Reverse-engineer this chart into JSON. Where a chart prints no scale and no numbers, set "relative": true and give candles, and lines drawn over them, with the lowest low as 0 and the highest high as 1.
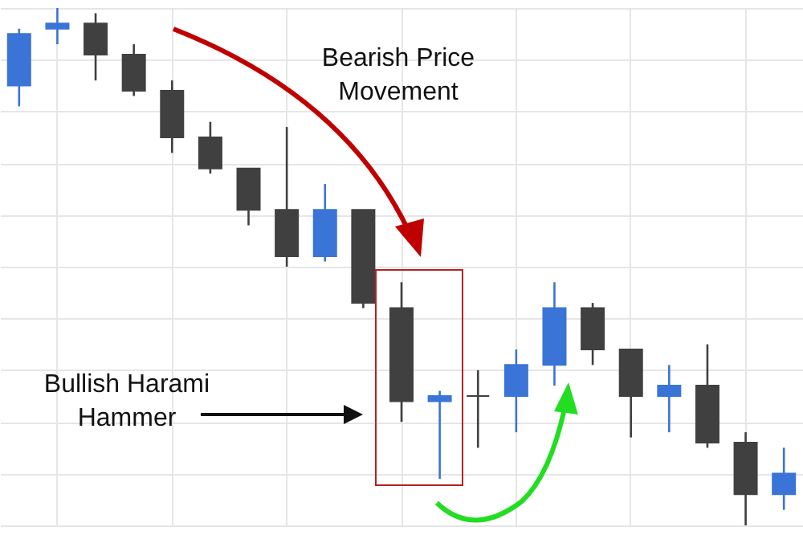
{
  "chart_data": {
    "type": "candlestick",
    "relative": true,
    "grid": true,
    "categories": [
      null,
      null,
      null,
      null,
      null,
      null,
      null,
      null,
      null,
      null,
      null,
      null,
      null,
      null,
      null,
      null,
      null,
      null,
      null,
      null,
      null
    ],
    "ohlc": [
      [
        0.85,
        0.96,
        0.81,
        0.95
      ],
      [
        0.96,
        1,
        0.93,
        0.97
      ],
      [
        0.97,
        0.99,
        0.86,
        0.91
      ],
      [
        0.91,
        0.93,
        0.83,
        0.84
      ],
      [
        0.84,
        0.86,
        0.72,
        0.75
      ],
      [
        0.75,
        0.78,
        0.68,
        0.69
      ],
      [
        0.69,
        0.69,
        0.58,
        0.61
      ],
      [
        0.61,
        0.77,
        0.5,
        0.52
      ],
      [
        0.52,
        0.66,
        0.51,
        0.61
      ],
      [
        0.61,
        0.61,
        0.42,
        0.43
      ],
      [
        0.42,
        0.47,
        0.2,
        0.24
      ],
      [
        0.24,
        0.26,
        0.09,
        0.25
      ],
      [
        0.25,
        0.3,
        0.15,
        0.25
      ],
      [
        0.25,
        0.34,
        0.18,
        0.31
      ],
      [
        0.31,
        0.47,
        0.27,
        0.42
      ],
      [
        0.42,
        0.43,
        0.31,
        0.34
      ],
      [
        0.34,
        0.34,
        0.17,
        0.25
      ],
      [
        0.25,
        0.31,
        0.18,
        0.27
      ],
      [
        0.27,
        0.35,
        0.15,
        0.16
      ],
      [
        0.16,
        0.18,
        0,
        0.06
      ],
      [
        0.06,
        0.15,
        0.03,
        0.1
      ]
    ],
    "colors": [
      "#3a74d6",
      "#3a74d6",
      "#404040",
      "#404040",
      "#404040",
      "#404040",
      "#404040",
      "#404040",
      "#3a74d6",
      "#404040",
      "#404040",
      "#3a74d6",
      "#404040",
      "#3a74d6",
      "#3a74d6",
      "#404040",
      "#404040",
      "#3a74d6",
      "#404040",
      "#404040",
      "#3a74d6"
    ],
    "annotations": [
      "Bearish Price Movement",
      "Bullish Harami Hammer"
    ]
  }
}
